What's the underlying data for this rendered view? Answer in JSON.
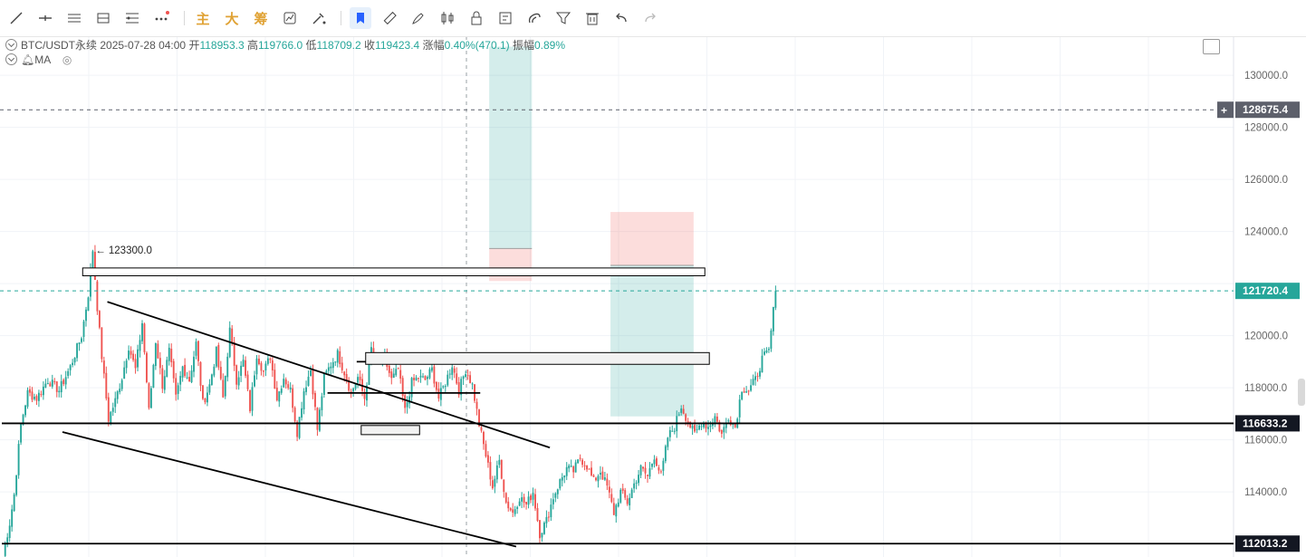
{
  "toolbar": {
    "tools": [
      {
        "icon": "trend-line-icon"
      },
      {
        "icon": "horizontal-line-icon"
      },
      {
        "icon": "parallel-channel-icon"
      },
      {
        "icon": "pitchfork-icon"
      },
      {
        "icon": "fib-retracement-icon"
      },
      {
        "icon": "more-tools-icon"
      }
    ],
    "text_tools": [
      "主",
      "大",
      "筹"
    ],
    "right_tools": [
      {
        "icon": "indicator-icon"
      },
      {
        "icon": "magnet-icon"
      },
      {
        "icon": "bookmark-icon",
        "active": true
      },
      {
        "icon": "ruler-icon"
      },
      {
        "icon": "brush-icon"
      },
      {
        "icon": "candle-type-icon"
      },
      {
        "icon": "lock-icon"
      },
      {
        "icon": "note-icon"
      },
      {
        "icon": "link-icon"
      },
      {
        "icon": "filter-icon"
      },
      {
        "icon": "trash-icon"
      },
      {
        "icon": "undo-icon"
      },
      {
        "icon": "redo-icon"
      }
    ],
    "accent": "#2962ff"
  },
  "legend": {
    "symbol": "BTC/USDT永续",
    "datetime": "2025-07-28 04:00",
    "open_label": "开",
    "open": "118953.3",
    "high_label": "高",
    "high": "119766.0",
    "low_label": "低",
    "low": "118709.2",
    "close_label": "收",
    "close": "119423.4",
    "change_label": "涨幅",
    "change": "0.40%(470.1)",
    "amp_label": "振幅",
    "amp": "0.89%",
    "indicator": "MA"
  },
  "chart_data": {
    "type": "candlestick",
    "ylim": [
      111500,
      131500
    ],
    "y_ticks": [
      130000.0,
      128000.0,
      126000.0,
      124000.0,
      122000.0,
      120000.0,
      118000.0,
      116000.0,
      114000.0
    ],
    "y_tick_labels": [
      "130000.0",
      "128000.0",
      "126000.0",
      "124000.0",
      "",
      "120000.0",
      "118000.0",
      "116000.0",
      "114000.0"
    ],
    "colors": {
      "up": "#26a69a",
      "down": "#ef5350",
      "grid": "#f0f3f7"
    },
    "high_annotation": {
      "label": "123300.0",
      "value": 123300.0
    },
    "price_tags": [
      {
        "label": "128675.4",
        "value": 128675.4,
        "color": "#5d606b",
        "dashed": true
      },
      {
        "label": "121720.4",
        "value": 121720.4,
        "color": "#26a69a",
        "dashed": true
      },
      {
        "label": "116633.2",
        "value": 116633.2,
        "color": "#131722",
        "dashed": false
      },
      {
        "label": "112013.2",
        "value": 112013.2,
        "color": "#131722",
        "dashed": false
      }
    ],
    "waypoints": [
      [
        0,
        111600
      ],
      [
        3,
        112800
      ],
      [
        5,
        113900
      ],
      [
        8,
        116600
      ],
      [
        11,
        117800
      ],
      [
        15,
        117600
      ],
      [
        20,
        118300
      ],
      [
        25,
        117900
      ],
      [
        30,
        118800
      ],
      [
        35,
        120000
      ],
      [
        38,
        121600
      ],
      [
        40,
        123300
      ],
      [
        42,
        121100
      ],
      [
        44,
        119200
      ],
      [
        47,
        116800
      ],
      [
        50,
        117500
      ],
      [
        53,
        118400
      ],
      [
        56,
        119600
      ],
      [
        59,
        118700
      ],
      [
        62,
        120500
      ],
      [
        65,
        117100
      ],
      [
        68,
        119800
      ],
      [
        71,
        118100
      ],
      [
        74,
        119400
      ],
      [
        77,
        117600
      ],
      [
        80,
        118800
      ],
      [
        83,
        118300
      ],
      [
        86,
        119700
      ],
      [
        89,
        117400
      ],
      [
        92,
        118100
      ],
      [
        95,
        119400
      ],
      [
        98,
        117600
      ],
      [
        101,
        120200
      ],
      [
        104,
        118300
      ],
      [
        107,
        119000
      ],
      [
        110,
        117200
      ],
      [
        113,
        119300
      ],
      [
        116,
        118600
      ],
      [
        119,
        119200
      ],
      [
        122,
        117600
      ],
      [
        125,
        118400
      ],
      [
        128,
        117900
      ],
      [
        131,
        116300
      ],
      [
        134,
        117900
      ],
      [
        137,
        118700
      ],
      [
        140,
        116400
      ],
      [
        143,
        118400
      ],
      [
        146,
        118900
      ],
      [
        149,
        119300
      ],
      [
        152,
        118600
      ],
      [
        155,
        117800
      ],
      [
        158,
        118400
      ],
      [
        161,
        117600
      ],
      [
        164,
        119500
      ],
      [
        167,
        118900
      ],
      [
        170,
        119100
      ],
      [
        173,
        118300
      ],
      [
        176,
        118700
      ],
      [
        179,
        117100
      ],
      [
        182,
        118200
      ],
      [
        185,
        118400
      ],
      [
        188,
        118300
      ],
      [
        191,
        118700
      ],
      [
        194,
        117600
      ],
      [
        197,
        118200
      ],
      [
        200,
        118900
      ],
      [
        203,
        117900
      ],
      [
        206,
        118700
      ],
      [
        209,
        118100
      ],
      [
        212,
        116600
      ],
      [
        215,
        115400
      ],
      [
        218,
        114200
      ],
      [
        221,
        115200
      ],
      [
        224,
        113600
      ],
      [
        227,
        113200
      ],
      [
        230,
        113800
      ],
      [
        233,
        113500
      ],
      [
        236,
        114000
      ],
      [
        239,
        112400
      ],
      [
        242,
        112900
      ],
      [
        245,
        113800
      ],
      [
        248,
        114400
      ],
      [
        251,
        114900
      ],
      [
        254,
        114800
      ],
      [
        257,
        115300
      ],
      [
        260,
        115000
      ],
      [
        263,
        114400
      ],
      [
        266,
        114800
      ],
      [
        269,
        114200
      ],
      [
        272,
        113200
      ],
      [
        275,
        114000
      ],
      [
        278,
        113600
      ],
      [
        281,
        114300
      ],
      [
        284,
        114900
      ],
      [
        287,
        114600
      ],
      [
        290,
        115400
      ],
      [
        293,
        114600
      ],
      [
        296,
        116100
      ],
      [
        299,
        116500
      ],
      [
        302,
        117300
      ],
      [
        305,
        116700
      ],
      [
        308,
        116200
      ],
      [
        311,
        116700
      ],
      [
        314,
        116500
      ],
      [
        317,
        116900
      ],
      [
        320,
        116200
      ],
      [
        323,
        116900
      ],
      [
        326,
        116500
      ],
      [
        329,
        118000
      ],
      [
        332,
        117900
      ],
      [
        335,
        118300
      ],
      [
        338,
        119100
      ],
      [
        341,
        119400
      ],
      [
        344,
        121720
      ]
    ],
    "trendlines": [
      {
        "from": [
          47,
          121300
        ],
        "to": [
          244,
          115700
        ]
      },
      {
        "from": [
          27,
          116300
        ],
        "to": [
          229,
          111900
        ]
      },
      {
        "from": [
          158,
          119000
        ],
        "to": [
          213,
          119000
        ]
      },
      {
        "from": [
          145,
          117800
        ],
        "to": [
          213,
          117800
        ]
      }
    ],
    "supports": [
      {
        "from": [
          0,
          116633.2
        ],
        "to": [
          345,
          116633.2
        ]
      },
      {
        "from": [
          0,
          112013.2
        ],
        "to": [
          345,
          112013.2
        ]
      }
    ],
    "boxes": [
      {
        "x": [
          36,
          313
        ],
        "y": [
          122300,
          122600
        ],
        "fill": "#ffffff"
      },
      {
        "x": [
          162,
          315
        ],
        "y": [
          118900,
          119350
        ],
        "fill": "#f2f2f2"
      },
      {
        "x": [
          160,
          186
        ],
        "y": [
          116200,
          116550
        ],
        "fill": "#f2f2f2"
      }
    ],
    "positions": [
      {
        "x": [
          217,
          236
        ],
        "entry": 123350,
        "target": 131100,
        "stop": 122100
      },
      {
        "x": [
          271,
          308
        ],
        "entry": 122700,
        "target": 116900,
        "stop": 124750
      }
    ]
  }
}
